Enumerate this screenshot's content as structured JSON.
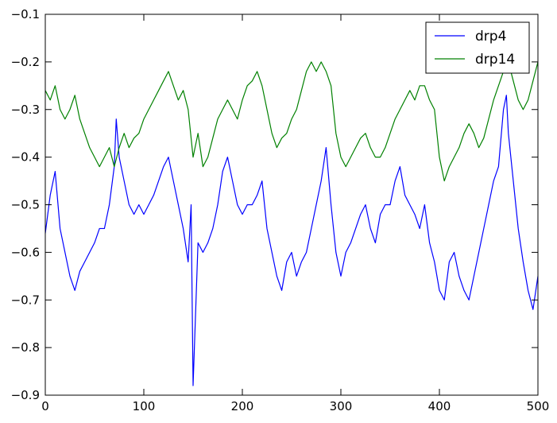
{
  "chart_data": {
    "type": "line",
    "title": "",
    "xlabel": "",
    "ylabel": "",
    "xlim": [
      0,
      500
    ],
    "ylim": [
      -0.9,
      -0.1
    ],
    "xticks": [
      "0",
      "100",
      "200",
      "300",
      "400",
      "500"
    ],
    "yticks": [
      "−0.1",
      "−0.2",
      "−0.3",
      "−0.4",
      "−0.5",
      "−0.6",
      "−0.7",
      "−0.8",
      "−0.9"
    ],
    "legend_position": "top-right",
    "grid": false,
    "series": [
      {
        "name": "drp4",
        "color": "#0000ff",
        "x": [
          0,
          5,
          10,
          15,
          20,
          25,
          30,
          35,
          40,
          45,
          50,
          55,
          60,
          65,
          70,
          72,
          75,
          80,
          85,
          90,
          95,
          100,
          105,
          110,
          115,
          120,
          125,
          130,
          135,
          140,
          145,
          148,
          150,
          155,
          160,
          165,
          170,
          175,
          180,
          185,
          190,
          195,
          200,
          205,
          210,
          215,
          220,
          225,
          230,
          235,
          240,
          245,
          250,
          255,
          260,
          265,
          270,
          275,
          280,
          285,
          290,
          295,
          300,
          305,
          310,
          315,
          320,
          325,
          330,
          335,
          340,
          345,
          350,
          355,
          360,
          365,
          370,
          375,
          380,
          385,
          390,
          395,
          400,
          405,
          410,
          415,
          420,
          425,
          430,
          435,
          440,
          445,
          450,
          455,
          460,
          465,
          468,
          470,
          475,
          480,
          485,
          490,
          495,
          500
        ],
        "y": [
          -0.56,
          -0.48,
          -0.43,
          -0.55,
          -0.6,
          -0.65,
          -0.68,
          -0.64,
          -0.62,
          -0.6,
          -0.58,
          -0.55,
          -0.55,
          -0.5,
          -0.42,
          -0.32,
          -0.4,
          -0.45,
          -0.5,
          -0.52,
          -0.5,
          -0.52,
          -0.5,
          -0.48,
          -0.45,
          -0.42,
          -0.4,
          -0.45,
          -0.5,
          -0.55,
          -0.62,
          -0.5,
          -0.88,
          -0.58,
          -0.6,
          -0.58,
          -0.55,
          -0.5,
          -0.43,
          -0.4,
          -0.45,
          -0.5,
          -0.52,
          -0.5,
          -0.5,
          -0.48,
          -0.45,
          -0.55,
          -0.6,
          -0.65,
          -0.68,
          -0.62,
          -0.6,
          -0.65,
          -0.62,
          -0.6,
          -0.55,
          -0.5,
          -0.45,
          -0.38,
          -0.5,
          -0.6,
          -0.65,
          -0.6,
          -0.58,
          -0.55,
          -0.52,
          -0.5,
          -0.55,
          -0.58,
          -0.52,
          -0.5,
          -0.5,
          -0.45,
          -0.42,
          -0.48,
          -0.5,
          -0.52,
          -0.55,
          -0.5,
          -0.58,
          -0.62,
          -0.68,
          -0.7,
          -0.62,
          -0.6,
          -0.65,
          -0.68,
          -0.7,
          -0.65,
          -0.6,
          -0.55,
          -0.5,
          -0.45,
          -0.42,
          -0.3,
          -0.27,
          -0.35,
          -0.45,
          -0.55,
          -0.62,
          -0.68,
          -0.72,
          -0.65
        ]
      },
      {
        "name": "drp14",
        "color": "#008000",
        "x": [
          0,
          5,
          10,
          15,
          20,
          25,
          30,
          35,
          40,
          45,
          50,
          55,
          60,
          65,
          70,
          75,
          80,
          85,
          90,
          95,
          100,
          105,
          110,
          115,
          120,
          125,
          130,
          135,
          140,
          145,
          150,
          155,
          160,
          165,
          170,
          175,
          180,
          185,
          190,
          195,
          200,
          205,
          210,
          215,
          220,
          225,
          230,
          235,
          240,
          245,
          250,
          255,
          260,
          265,
          270,
          275,
          280,
          285,
          290,
          295,
          300,
          305,
          310,
          315,
          320,
          325,
          330,
          335,
          340,
          345,
          350,
          355,
          360,
          365,
          370,
          375,
          380,
          385,
          390,
          395,
          400,
          405,
          410,
          415,
          420,
          425,
          430,
          435,
          440,
          445,
          450,
          455,
          460,
          465,
          470,
          475,
          480,
          485,
          490,
          495,
          500
        ],
        "y": [
          -0.26,
          -0.28,
          -0.25,
          -0.3,
          -0.32,
          -0.3,
          -0.27,
          -0.32,
          -0.35,
          -0.38,
          -0.4,
          -0.42,
          -0.4,
          -0.38,
          -0.42,
          -0.38,
          -0.35,
          -0.38,
          -0.36,
          -0.35,
          -0.32,
          -0.3,
          -0.28,
          -0.26,
          -0.24,
          -0.22,
          -0.25,
          -0.28,
          -0.26,
          -0.3,
          -0.4,
          -0.35,
          -0.42,
          -0.4,
          -0.36,
          -0.32,
          -0.3,
          -0.28,
          -0.3,
          -0.32,
          -0.28,
          -0.25,
          -0.24,
          -0.22,
          -0.25,
          -0.3,
          -0.35,
          -0.38,
          -0.36,
          -0.35,
          -0.32,
          -0.3,
          -0.26,
          -0.22,
          -0.2,
          -0.22,
          -0.2,
          -0.22,
          -0.25,
          -0.35,
          -0.4,
          -0.42,
          -0.4,
          -0.38,
          -0.36,
          -0.35,
          -0.38,
          -0.4,
          -0.4,
          -0.38,
          -0.35,
          -0.32,
          -0.3,
          -0.28,
          -0.26,
          -0.28,
          -0.25,
          -0.25,
          -0.28,
          -0.3,
          -0.4,
          -0.45,
          -0.42,
          -0.4,
          -0.38,
          -0.35,
          -0.33,
          -0.35,
          -0.38,
          -0.36,
          -0.32,
          -0.28,
          -0.25,
          -0.22,
          -0.2,
          -0.24,
          -0.28,
          -0.3,
          -0.28,
          -0.24,
          -0.2
        ]
      }
    ]
  }
}
